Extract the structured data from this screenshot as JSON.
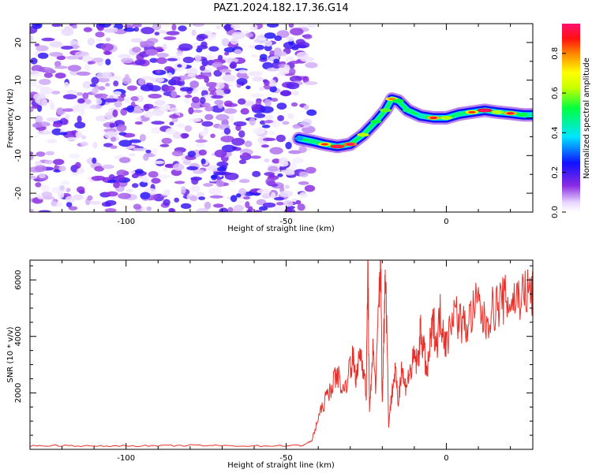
{
  "title": "PAZ1.2024.182.17.36.G14",
  "chart_data": [
    {
      "type": "heatmap",
      "xlabel": "Height of straight line (km)",
      "ylabel": "Frequency (Hz)",
      "xlim": [
        -130,
        27
      ],
      "ylim": [
        -25,
        25
      ],
      "xticks": [
        -100,
        -50,
        0
      ],
      "yticks": [
        -20,
        -10,
        0,
        10,
        20
      ],
      "colorbar": {
        "label": "Normalized spectral amplitude",
        "range": [
          0.0,
          0.95
        ],
        "ticks": [
          0.0,
          0.2,
          0.4,
          0.6,
          0.8
        ],
        "colormap": "rainbow (white-violet-blue-cyan-green-yellow-red-magenta)"
      },
      "noise_region": {
        "x_from": -130,
        "x_to": -42,
        "amplitude_range": [
          0.02,
          0.25
        ]
      },
      "signal_ridge": {
        "x": [
          -46,
          -42,
          -38,
          -34,
          -30,
          -26,
          -22,
          -19,
          -17,
          -15,
          -12,
          -8,
          -4,
          0,
          4,
          8,
          12,
          16,
          20,
          24,
          27
        ],
        "y": [
          -5.5,
          -6.2,
          -7.0,
          -7.6,
          -7.0,
          -4.5,
          -1.0,
          2.0,
          5.0,
          4.5,
          2.0,
          0.5,
          0.0,
          0.0,
          1.0,
          1.5,
          2.0,
          1.5,
          1.2,
          0.8,
          0.8
        ],
        "amplitude": [
          0.3,
          0.45,
          0.7,
          0.85,
          0.8,
          0.6,
          0.5,
          0.55,
          0.65,
          0.5,
          0.45,
          0.4,
          0.75,
          0.6,
          0.45,
          0.7,
          0.9,
          0.6,
          0.75,
          0.5,
          0.4
        ]
      }
    },
    {
      "type": "line",
      "xlabel": "Height of straight line (km)",
      "ylabel": "SNR (10 * v/v)",
      "xlim": [
        -130,
        27
      ],
      "ylim": [
        0,
        6700
      ],
      "xticks": [
        -100,
        -50,
        0
      ],
      "yticks": [
        2000,
        4000,
        6000
      ],
      "color": "#e8302a",
      "series": [
        {
          "x": [
            -130,
            -120,
            -110,
            -100,
            -90,
            -80,
            -70,
            -60,
            -50,
            -45,
            -42,
            -40,
            -38,
            -36,
            -34,
            -32,
            -30,
            -29,
            -28,
            -27,
            -26,
            -25,
            -24.5,
            -24,
            -23,
            -22,
            -21,
            -20.5,
            -20,
            -19.5,
            -19,
            -18,
            -17,
            -16,
            -15,
            -14,
            -13,
            -12,
            -11,
            -10,
            -9,
            -8,
            -7,
            -6,
            -5,
            -4,
            -3,
            -2,
            -1,
            0,
            2,
            4,
            6,
            8,
            10,
            12,
            14,
            16,
            18,
            20,
            22,
            24,
            26,
            27
          ],
          "y": [
            120,
            140,
            110,
            130,
            120,
            140,
            130,
            120,
            130,
            140,
            300,
            1100,
            1700,
            2200,
            2700,
            2000,
            3000,
            3200,
            2400,
            3500,
            3000,
            1900,
            6500,
            1200,
            3600,
            2200,
            5600,
            6700,
            1500,
            4200,
            6700,
            900,
            2000,
            2800,
            1600,
            3000,
            2200,
            2500,
            2800,
            3300,
            3000,
            4200,
            3500,
            2600,
            3800,
            4500,
            3700,
            4800,
            4300,
            3600,
            5000,
            4600,
            4300,
            4800,
            5200,
            4400,
            4900,
            5100,
            5300,
            5200,
            5400,
            5500,
            5600,
            5400
          ]
        }
      ]
    }
  ]
}
